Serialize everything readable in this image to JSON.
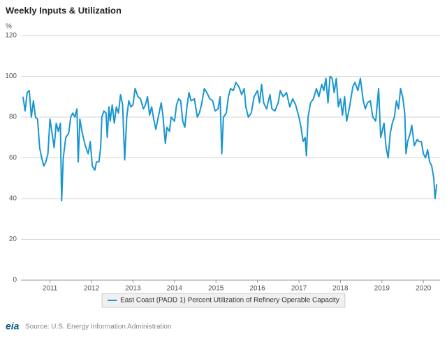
{
  "chart_data": {
    "type": "line",
    "title": "Weekly Inputs & Utilization",
    "y_label": "%",
    "source": "Source: U.S. Energy Information Administration",
    "logo": "eia",
    "xlim": [
      2010.3,
      2020.4
    ],
    "xticks": [
      2011,
      2012,
      2013,
      2014,
      2015,
      2016,
      2017,
      2018,
      2019,
      2020
    ],
    "ylim": [
      0,
      120
    ],
    "yticks": [
      0,
      20,
      40,
      60,
      80,
      100,
      120
    ],
    "grid": true,
    "legend": "bottom",
    "x": [
      2010.35,
      2010.4,
      2010.45,
      2010.5,
      2010.55,
      2010.6,
      2010.65,
      2010.7,
      2010.75,
      2010.8,
      2010.85,
      2010.9,
      2010.95,
      2011.0,
      2011.05,
      2011.1,
      2011.15,
      2011.2,
      2011.25,
      2011.28,
      2011.32,
      2011.38,
      2011.45,
      2011.5,
      2011.55,
      2011.6,
      2011.65,
      2011.68,
      2011.72,
      2011.78,
      2011.85,
      2011.92,
      2011.97,
      2012.02,
      2012.08,
      2012.12,
      2012.18,
      2012.22,
      2012.25,
      2012.3,
      2012.35,
      2012.38,
      2012.42,
      2012.45,
      2012.5,
      2012.55,
      2012.6,
      2012.65,
      2012.7,
      2012.75,
      2012.8,
      2012.85,
      2012.9,
      2012.95,
      2013.0,
      2013.05,
      2013.12,
      2013.18,
      2013.25,
      2013.3,
      2013.35,
      2013.4,
      2013.45,
      2013.5,
      2013.55,
      2013.62,
      2013.68,
      2013.72,
      2013.78,
      2013.82,
      2013.88,
      2013.92,
      2014.0,
      2014.05,
      2014.1,
      2014.15,
      2014.2,
      2014.25,
      2014.3,
      2014.35,
      2014.4,
      2014.48,
      2014.55,
      2014.6,
      2014.65,
      2014.72,
      2014.78,
      2014.85,
      2014.92,
      2014.98,
      2015.05,
      2015.1,
      2015.14,
      2015.18,
      2015.25,
      2015.3,
      2015.35,
      2015.42,
      2015.48,
      2015.55,
      2015.62,
      2015.68,
      2015.72,
      2015.78,
      2015.85,
      2015.92,
      2016.0,
      2016.05,
      2016.1,
      2016.15,
      2016.22,
      2016.3,
      2016.35,
      2016.42,
      2016.5,
      2016.55,
      2016.62,
      2016.7,
      2016.78,
      2016.85,
      2016.92,
      2017.0,
      2017.05,
      2017.1,
      2017.15,
      2017.18,
      2017.22,
      2017.28,
      2017.35,
      2017.42,
      2017.48,
      2017.55,
      2017.6,
      2017.65,
      2017.7,
      2017.75,
      2017.8,
      2017.85,
      2017.9,
      2017.95,
      2018.0,
      2018.05,
      2018.1,
      2018.15,
      2018.22,
      2018.3,
      2018.35,
      2018.42,
      2018.48,
      2018.55,
      2018.6,
      2018.65,
      2018.72,
      2018.78,
      2018.85,
      2018.92,
      2018.97,
      2019.05,
      2019.1,
      2019.15,
      2019.2,
      2019.25,
      2019.3,
      2019.35,
      2019.4,
      2019.45,
      2019.5,
      2019.55,
      2019.58,
      2019.62,
      2019.68,
      2019.72,
      2019.78,
      2019.85,
      2019.9,
      2019.95,
      2020.0,
      2020.05,
      2020.1,
      2020.15,
      2020.2,
      2020.25,
      2020.28,
      2020.32
    ],
    "series": [
      {
        "name": "East Coast (PADD 1) Percent Utilization of Refinery Operable Capacity",
        "color": "#1a96cf",
        "values": [
          90,
          83,
          92,
          93,
          80,
          88,
          80,
          79,
          65,
          60,
          56,
          58,
          62,
          79,
          72,
          65,
          77,
          73,
          77,
          39,
          60,
          70,
          72,
          80,
          82,
          80,
          84,
          58,
          79,
          72,
          66,
          62,
          68,
          56,
          54,
          58,
          58,
          65,
          80,
          83,
          82,
          70,
          85,
          78,
          86,
          77,
          85,
          82,
          91,
          86,
          59,
          80,
          88,
          85,
          86,
          94,
          90,
          89,
          84,
          86,
          90,
          81,
          85,
          79,
          74,
          81,
          87,
          81,
          67,
          75,
          73,
          80,
          78,
          86,
          89,
          88,
          78,
          75,
          85,
          92,
          88,
          89,
          80,
          82,
          86,
          94,
          92,
          89,
          88,
          83,
          84,
          90,
          62,
          80,
          82,
          90,
          94,
          93,
          97,
          95,
          91,
          94,
          85,
          80,
          82,
          90,
          93,
          87,
          96,
          87,
          84,
          91,
          84,
          83,
          87,
          93,
          90,
          92,
          85,
          89,
          86,
          80,
          75,
          68,
          70,
          61,
          80,
          87,
          89,
          94,
          90,
          96,
          93,
          99,
          87,
          100,
          99,
          92,
          99,
          85,
          89,
          81,
          90,
          78,
          85,
          95,
          97,
          93,
          99,
          88,
          84,
          87,
          88,
          80,
          78,
          94,
          70,
          77,
          65,
          60,
          72,
          77,
          80,
          88,
          84,
          94,
          90,
          82,
          62,
          68,
          72,
          76,
          66,
          69,
          68,
          68,
          62,
          60,
          64,
          58,
          56,
          50,
          40,
          47
        ]
      }
    ]
  }
}
